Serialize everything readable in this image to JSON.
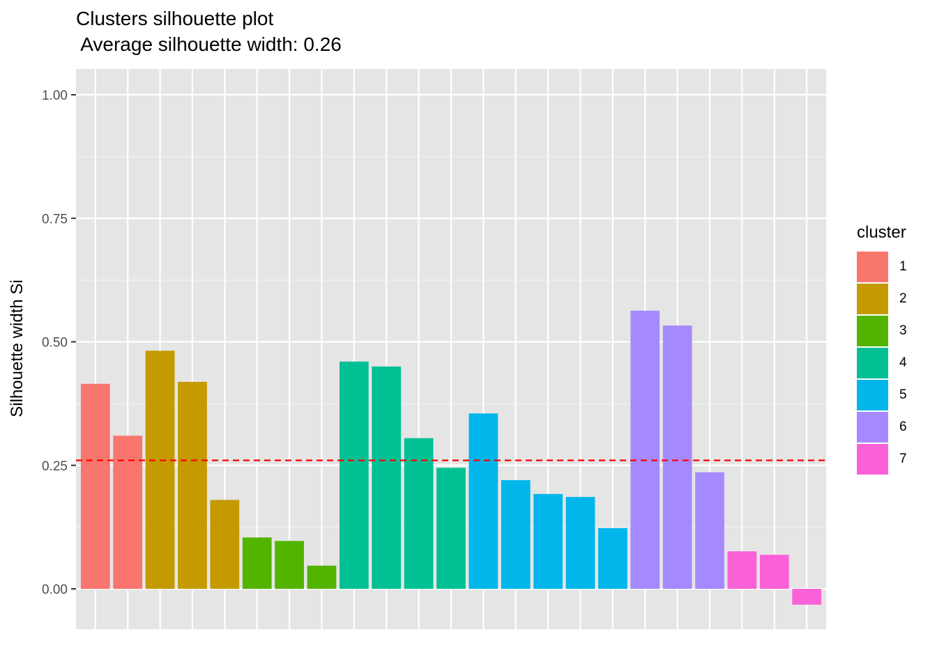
{
  "chart_data": {
    "type": "bar",
    "title": "Clusters silhouette plot",
    "subtitle": " Average silhouette width: 0.26",
    "xlabel": "",
    "ylabel": "Silhouette width Si",
    "ylim": [
      -0.08,
      1.05
    ],
    "yticks": [
      "0.00",
      "0.25",
      "0.50",
      "0.75",
      "1.00"
    ],
    "ytick_values": [
      0,
      0.25,
      0.5,
      0.75,
      1.0
    ],
    "average_line": {
      "value": 0.26,
      "color": "#ff0000",
      "style": "dashed"
    },
    "grid": true,
    "legend_position": "right",
    "legend_title": "cluster",
    "clusters": [
      {
        "name": "1",
        "color": "#F8766D"
      },
      {
        "name": "2",
        "color": "#C49A00"
      },
      {
        "name": "3",
        "color": "#53B400"
      },
      {
        "name": "4",
        "color": "#00C094"
      },
      {
        "name": "5",
        "color": "#00B6EB"
      },
      {
        "name": "6",
        "color": "#A58AFF"
      },
      {
        "name": "7",
        "color": "#FB61D7"
      }
    ],
    "bars": [
      {
        "cluster": "1",
        "value": 0.415
      },
      {
        "cluster": "1",
        "value": 0.31
      },
      {
        "cluster": "2",
        "value": 0.482
      },
      {
        "cluster": "2",
        "value": 0.419
      },
      {
        "cluster": "2",
        "value": 0.18
      },
      {
        "cluster": "3",
        "value": 0.104
      },
      {
        "cluster": "3",
        "value": 0.097
      },
      {
        "cluster": "3",
        "value": 0.047
      },
      {
        "cluster": "4",
        "value": 0.46
      },
      {
        "cluster": "4",
        "value": 0.45
      },
      {
        "cluster": "4",
        "value": 0.305
      },
      {
        "cluster": "4",
        "value": 0.245
      },
      {
        "cluster": "5",
        "value": 0.355
      },
      {
        "cluster": "5",
        "value": 0.22
      },
      {
        "cluster": "5",
        "value": 0.192
      },
      {
        "cluster": "5",
        "value": 0.186
      },
      {
        "cluster": "5",
        "value": 0.123
      },
      {
        "cluster": "6",
        "value": 0.563
      },
      {
        "cluster": "6",
        "value": 0.533
      },
      {
        "cluster": "6",
        "value": 0.236
      },
      {
        "cluster": "7",
        "value": 0.076
      },
      {
        "cluster": "7",
        "value": 0.069
      },
      {
        "cluster": "7",
        "value": -0.032
      }
    ]
  }
}
